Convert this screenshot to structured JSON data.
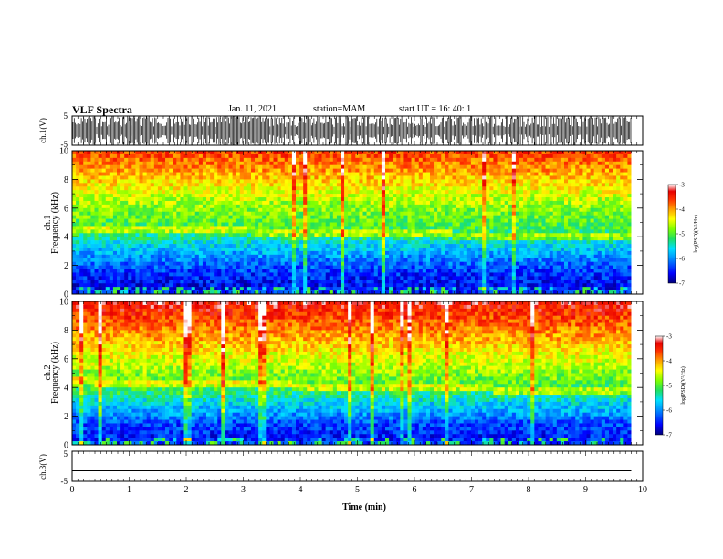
{
  "header": {
    "title": "VLF Spectra",
    "date": "Jan. 11, 2021",
    "station": "station=MAM",
    "start": "start UT =  16: 40: 1"
  },
  "chart_data": [
    {
      "type": "line",
      "panel": "ch1-waveform",
      "ylabel": "ch.1(V)",
      "yticks": [
        "5",
        "-5"
      ],
      "ylim": [
        -5,
        5
      ],
      "description_of_signal": "dense impulsive waveform spanning roughly -5 to 5 V",
      "xlim": [
        0,
        10
      ]
    },
    {
      "type": "heatmap",
      "panel": "ch1-spectrogram",
      "ylabel": "ch.1\nFrequency (kHz)",
      "ylabel_lines": [
        "ch.1",
        "Frequency (kHz)"
      ],
      "yticks": [
        "0",
        "2",
        "4",
        "6",
        "8",
        "10"
      ],
      "ylim": [
        0,
        10
      ],
      "xlim": [
        0,
        9.8
      ],
      "colorbar": {
        "label": "log(PSD)(V²/Hz)",
        "ticks": [
          "-3",
          "-4",
          "-5",
          "-6",
          "-7"
        ],
        "range": [
          -7,
          -3
        ]
      },
      "profile_by_frequency_khz": [
        [
          0,
          -6.4
        ],
        [
          0.5,
          -6.6
        ],
        [
          1,
          -6.5
        ],
        [
          1.5,
          -6.4
        ],
        [
          2,
          -6.2
        ],
        [
          2.5,
          -6.0
        ],
        [
          3,
          -5.8
        ],
        [
          3.5,
          -5.6
        ],
        [
          4,
          -5.3
        ],
        [
          4.5,
          -5.1
        ],
        [
          5,
          -5.0
        ],
        [
          6,
          -4.8
        ],
        [
          7,
          -4.5
        ],
        [
          8,
          -4.2
        ],
        [
          9,
          -3.9
        ],
        [
          10,
          -3.6
        ]
      ],
      "whistler_band_khz": [
        4.6,
        3.9
      ]
    },
    {
      "type": "heatmap",
      "panel": "ch2-spectrogram",
      "ylabel": "ch.2\nFrequency (kHz)",
      "ylabel_lines": [
        "ch.2",
        "Frequency (kHz)"
      ],
      "yticks": [
        "0",
        "2",
        "4",
        "6",
        "8",
        "10"
      ],
      "ylim": [
        0,
        10
      ],
      "xlim": [
        0,
        9.8
      ],
      "colorbar": {
        "label": "log(PSD)(V²/Hz)",
        "ticks": [
          "-3",
          "-4",
          "-5",
          "-6",
          "-7"
        ],
        "range": [
          -7,
          -3
        ]
      },
      "profile_by_frequency_khz": [
        [
          0,
          -6.3
        ],
        [
          0.5,
          -6.5
        ],
        [
          1,
          -6.4
        ],
        [
          1.5,
          -6.3
        ],
        [
          2,
          -6.0
        ],
        [
          2.5,
          -5.8
        ],
        [
          3,
          -5.6
        ],
        [
          3.5,
          -5.3
        ],
        [
          4,
          -5.1
        ],
        [
          4.5,
          -4.9
        ],
        [
          5,
          -4.8
        ],
        [
          6,
          -4.5
        ],
        [
          7,
          -4.2
        ],
        [
          8,
          -3.9
        ],
        [
          9,
          -3.6
        ],
        [
          10,
          -3.3
        ]
      ],
      "whistler_band_khz": [
        4.4,
        3.7
      ]
    },
    {
      "type": "line",
      "panel": "ch3-waveform",
      "ylabel": "ch.3(V)",
      "yticks": [
        "5",
        "-5"
      ],
      "ylim": [
        -5,
        5
      ],
      "x": [
        0,
        9.8
      ],
      "y": [
        -1.5,
        -1.5
      ],
      "xlabel": "Time (min)",
      "xticks": [
        "0",
        "1",
        "2",
        "3",
        "4",
        "5",
        "6",
        "7",
        "8",
        "9",
        "10"
      ],
      "xlim": [
        0,
        10
      ]
    }
  ],
  "colors": {
    "colormap": [
      "#00007a",
      "#0000ff",
      "#0090ff",
      "#00e0ff",
      "#20e060",
      "#80ff00",
      "#ffff00",
      "#ffa000",
      "#ff3000",
      "#e80000",
      "#ffffff"
    ]
  }
}
